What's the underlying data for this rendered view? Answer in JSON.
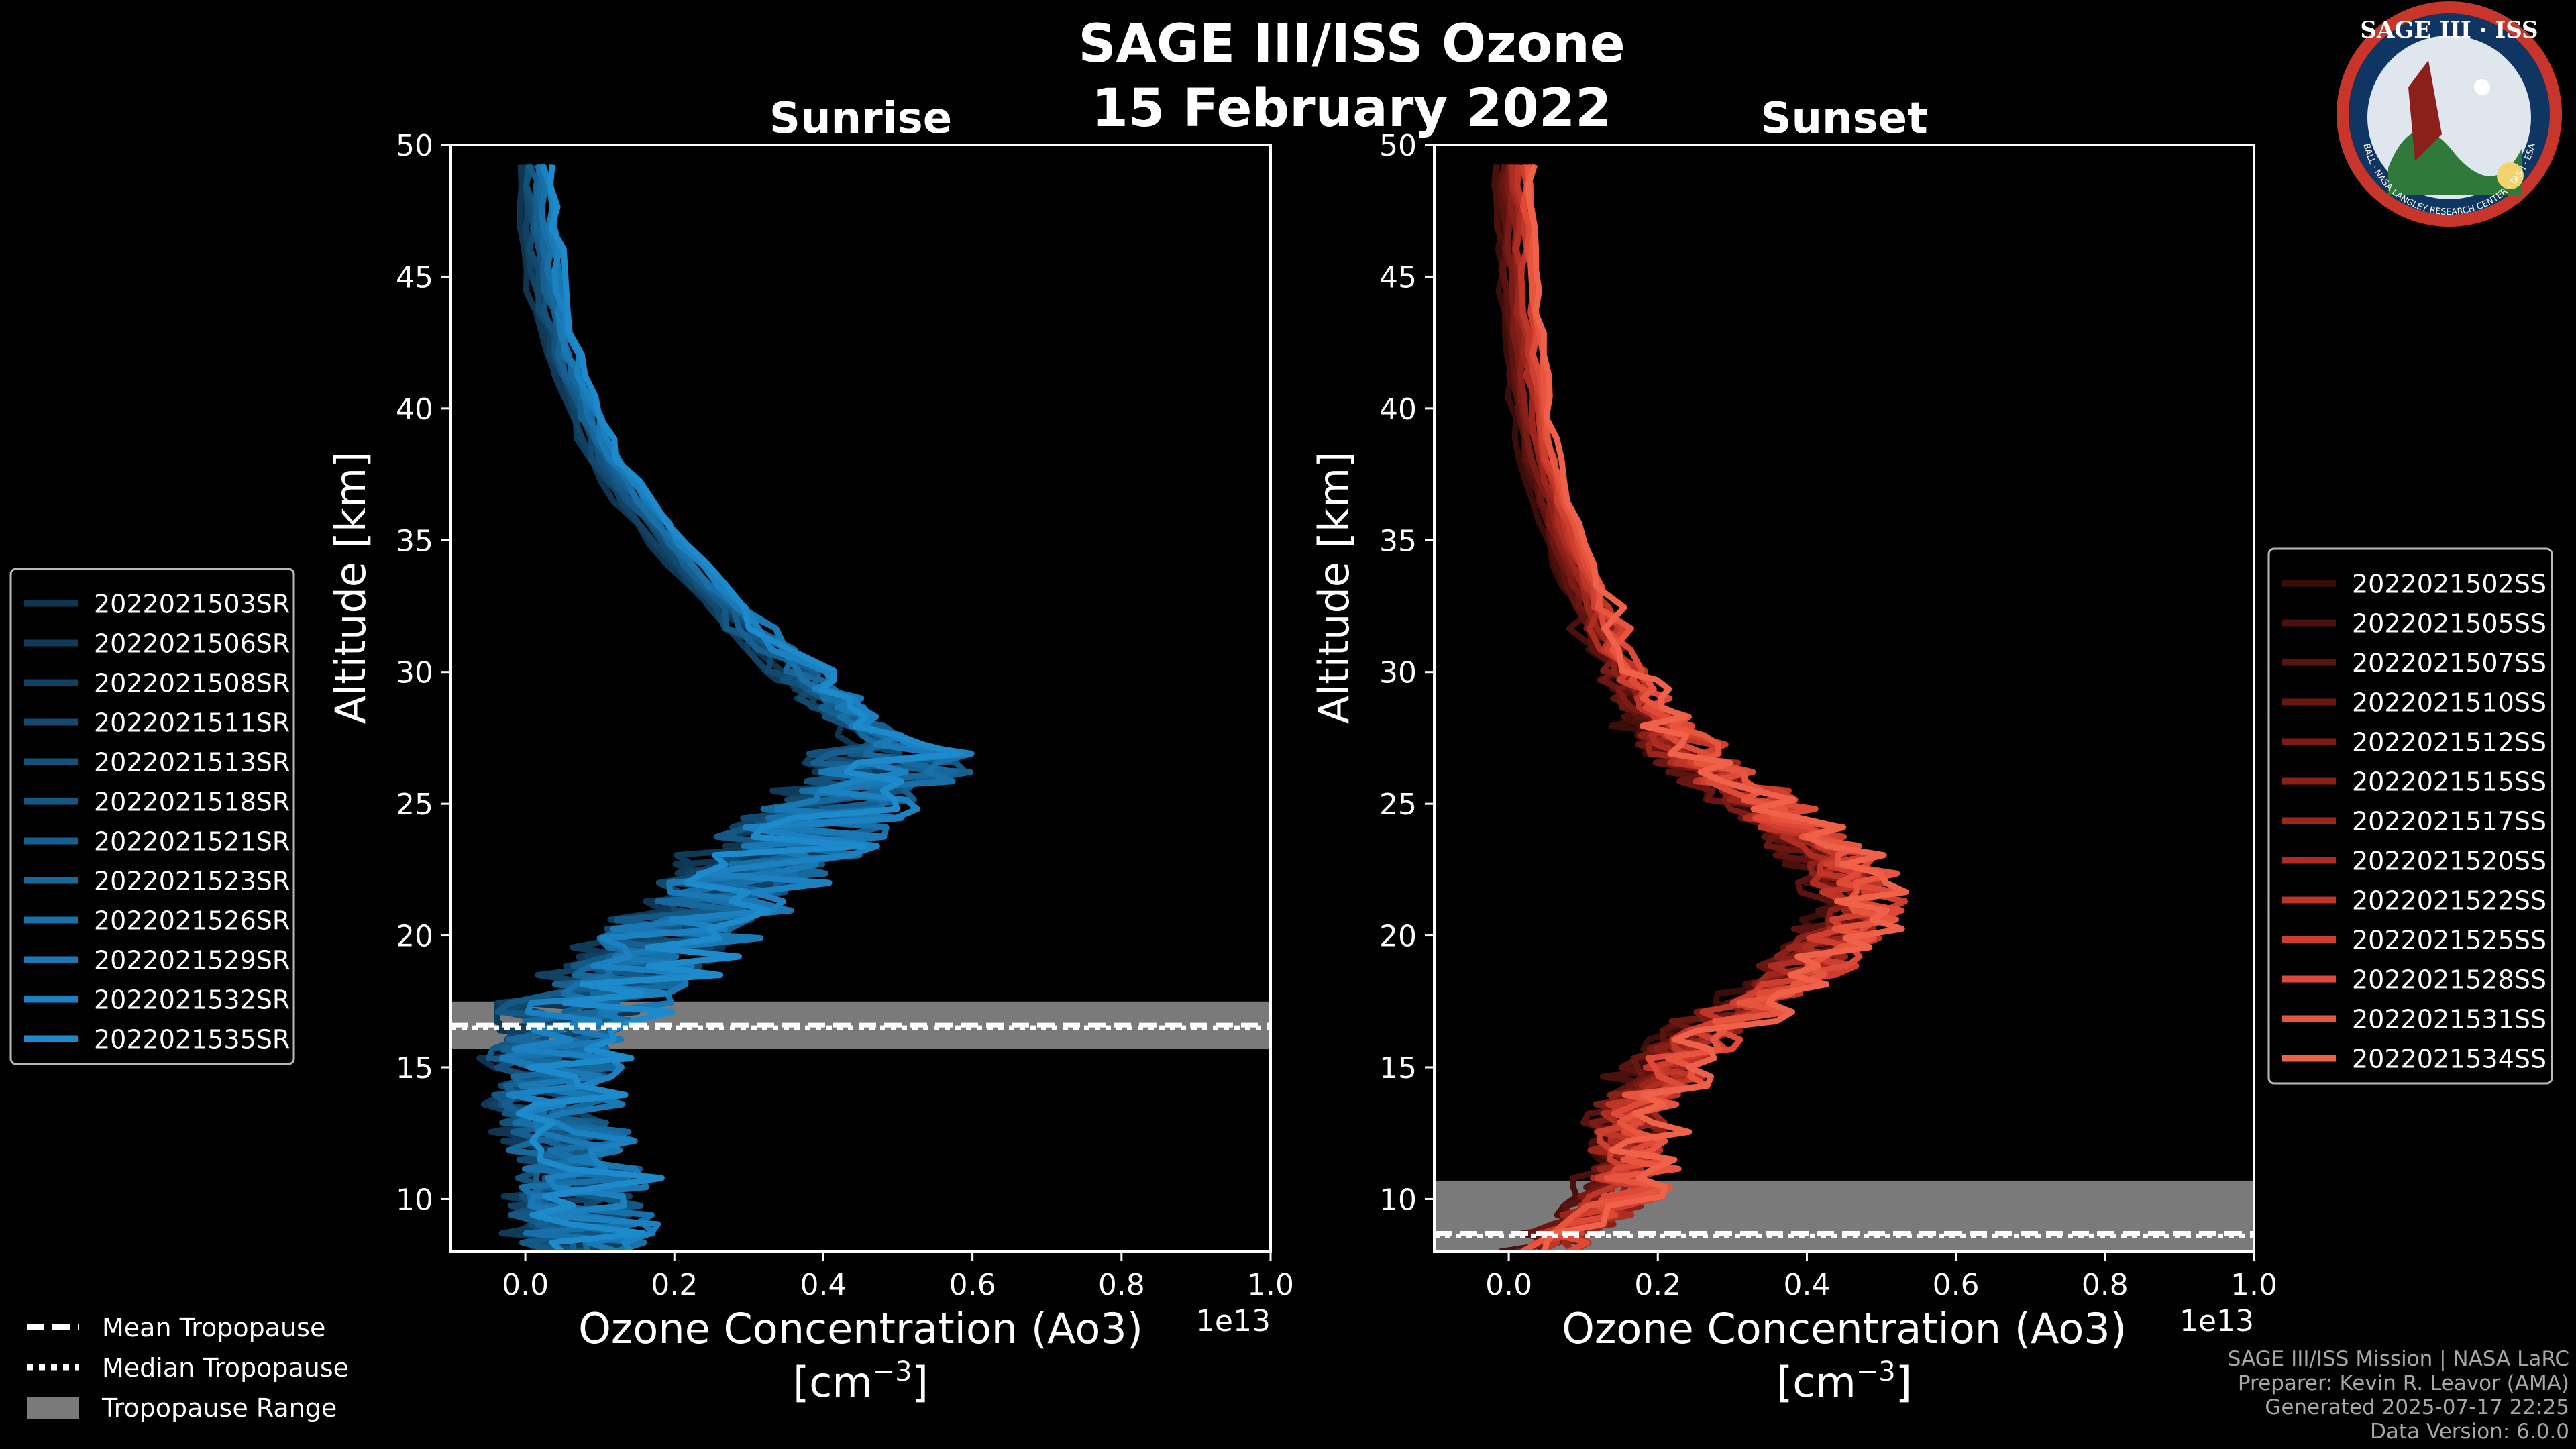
{
  "figure": {
    "title_line1": "SAGE III/ISS Ozone",
    "title_line2": "15 February 2022",
    "badge": {
      "name": "SAGE III · ISS",
      "ring_text": "BALL · NASA LANGLEY RESEARCH CENTER · TAS-I · ESA",
      "icon": "mission-patch-icon"
    },
    "credits": [
      "SAGE III/ISS Mission | NASA LaRC",
      "Preparer: Kevin R. Leavor (AMA)",
      "Generated 2025-07-17 22:25",
      "Data Version: 6.0.0"
    ],
    "tropopause_legend": [
      "Mean Tropopause",
      "Median Tropopause",
      "Tropopause Range"
    ],
    "colors": {
      "background": "#000000",
      "sunrise": "#1a8fd0",
      "sunset": "#f06a55",
      "trop_band": "#7a7a7a"
    }
  },
  "chart_data": [
    {
      "type": "line",
      "title": "Sunrise",
      "xlabel": "Ozone Concentration (Ao3)",
      "xunits": "[cm",
      "xunits_exp": "−3",
      "xunits_close": "]",
      "ylabel": "Altitude [km]",
      "offset_text": "1e13",
      "xlim": [
        -0.1,
        1.0
      ],
      "ylim": [
        8,
        50
      ],
      "xticks": [
        0.0,
        0.2,
        0.4,
        0.6,
        0.8,
        1.0
      ],
      "xtick_labels": [
        "0.0",
        "0.2",
        "0.4",
        "0.6",
        "0.8",
        "1.0"
      ],
      "yticks": [
        10,
        15,
        20,
        25,
        30,
        35,
        40,
        45,
        50
      ],
      "ytick_labels": [
        "10",
        "15",
        "20",
        "25",
        "30",
        "35",
        "40",
        "45",
        "50"
      ],
      "tropopause": {
        "mean": 16.6,
        "median": 16.5,
        "range": [
          15.7,
          17.5
        ]
      },
      "legend": [
        "2022021503SR",
        "2022021506SR",
        "2022021508SR",
        "2022021511SR",
        "2022021513SR",
        "2022021518SR",
        "2022021521SR",
        "2022021523SR",
        "2022021526SR",
        "2022021529SR",
        "2022021532SR",
        "2022021535SR"
      ],
      "profile_altitudes_km": [
        8,
        9,
        10,
        11,
        12,
        13,
        14,
        15,
        16,
        17,
        18,
        19,
        20,
        21,
        22,
        23,
        24,
        25,
        26,
        27,
        28,
        29,
        30,
        32,
        34,
        36,
        38,
        40,
        42,
        44,
        46,
        48,
        50
      ],
      "mean_profile_1e13": [
        0.07,
        0.08,
        0.07,
        0.08,
        0.06,
        0.05,
        0.05,
        0.04,
        0.05,
        0.07,
        0.11,
        0.16,
        0.2,
        0.25,
        0.29,
        0.33,
        0.38,
        0.43,
        0.49,
        0.5,
        0.45,
        0.41,
        0.37,
        0.29,
        0.22,
        0.16,
        0.11,
        0.075,
        0.05,
        0.035,
        0.025,
        0.017,
        0.012
      ]
    },
    {
      "type": "line",
      "title": "Sunset",
      "xlabel": "Ozone Concentration (Ao3)",
      "xunits": "[cm",
      "xunits_exp": "−3",
      "xunits_close": "]",
      "ylabel": "Altitude [km]",
      "offset_text": "1e13",
      "xlim": [
        -0.1,
        1.0
      ],
      "ylim": [
        8,
        50
      ],
      "xticks": [
        0.0,
        0.2,
        0.4,
        0.6,
        0.8,
        1.0
      ],
      "xtick_labels": [
        "0.0",
        "0.2",
        "0.4",
        "0.6",
        "0.8",
        "1.0"
      ],
      "yticks": [
        10,
        15,
        20,
        25,
        30,
        35,
        40,
        45,
        50
      ],
      "ytick_labels": [
        "10",
        "15",
        "20",
        "25",
        "30",
        "35",
        "40",
        "45",
        "50"
      ],
      "tropopause": {
        "mean": 8.7,
        "median": 8.6,
        "range": [
          8.0,
          10.7
        ]
      },
      "legend": [
        "2022021502SS",
        "2022021505SS",
        "2022021507SS",
        "2022021510SS",
        "2022021512SS",
        "2022021515SS",
        "2022021517SS",
        "2022021520SS",
        "2022021522SS",
        "2022021525SS",
        "2022021528SS",
        "2022021531SS",
        "2022021534SS"
      ],
      "profile_altitudes_km": [
        8,
        9,
        10,
        11,
        12,
        13,
        14,
        15,
        16,
        17,
        18,
        19,
        20,
        21,
        22,
        23,
        24,
        25,
        26,
        27,
        28,
        29,
        30,
        32,
        34,
        36,
        38,
        40,
        42,
        44,
        46,
        48,
        50
      ],
      "mean_profile_1e13": [
        0.05,
        0.1,
        0.15,
        0.16,
        0.16,
        0.17,
        0.19,
        0.21,
        0.25,
        0.3,
        0.36,
        0.41,
        0.45,
        0.47,
        0.46,
        0.43,
        0.39,
        0.34,
        0.29,
        0.24,
        0.21,
        0.18,
        0.155,
        0.12,
        0.09,
        0.065,
        0.045,
        0.032,
        0.024,
        0.018,
        0.013,
        0.01,
        0.008
      ]
    }
  ]
}
